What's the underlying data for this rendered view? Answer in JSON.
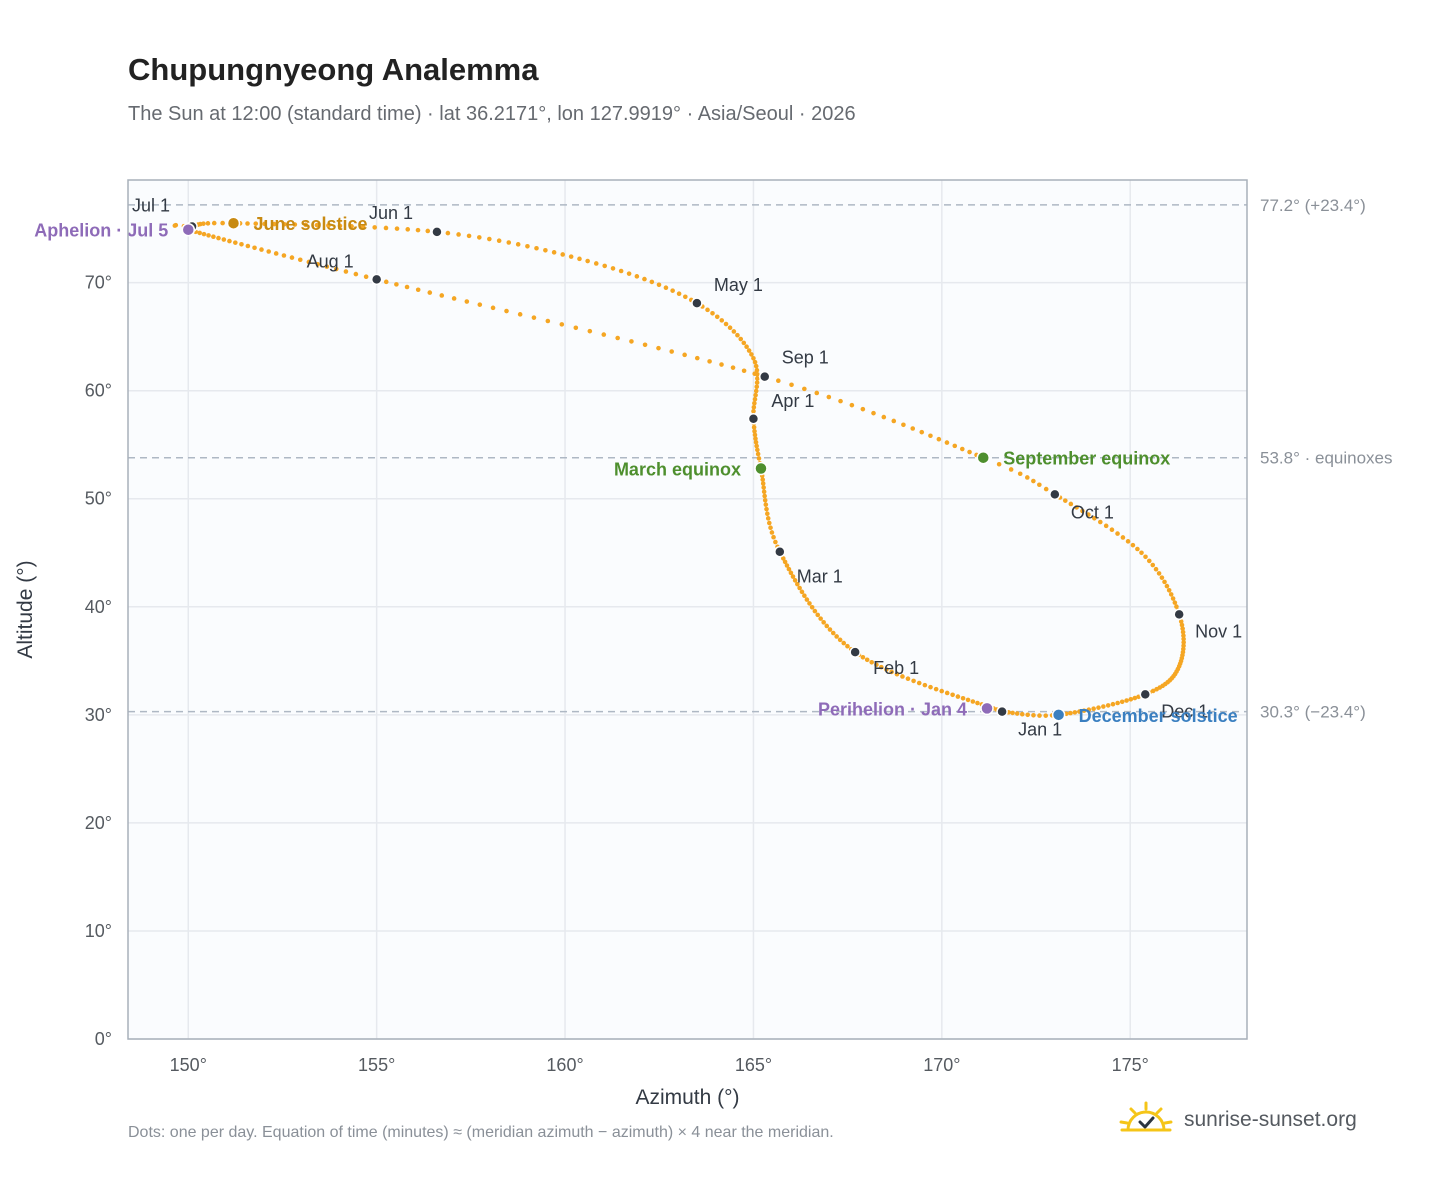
{
  "title": "Chupungnyeong Analemma",
  "subtitle": "The Sun at 12:00 (standard time) · lat 36.2171°, lon 127.9919° · Asia/Seoul · 2026",
  "footnote": "Dots: one per day. Equation of time (minutes) ≈ (meridian azimuth − azimuth) × 4 near the meridian.",
  "brand": {
    "name": "sunrise-sunset.org",
    "icon": "sun-check-icon"
  },
  "colors": {
    "path": "#f5a623",
    "month": "#333a44",
    "june": "#c88a12",
    "december": "#3a7fc0",
    "equinox": "#4e8f2e",
    "apsis": "#8e6bb8",
    "grid": "#e6e9ee",
    "ref": "#aeb8c4",
    "frame": "#a8b0ba",
    "plot_bg": "#fafcfe",
    "tick": "#555a60"
  },
  "chart_data": {
    "type": "scatter",
    "xlabel": "Azimuth (°)",
    "ylabel": "Altitude (°)",
    "xlim": [
      148.4,
      178.1
    ],
    "ylim": [
      0,
      79.5
    ],
    "x_ticks": [
      150,
      155,
      160,
      165,
      170,
      175
    ],
    "y_ticks": [
      0,
      10,
      20,
      30,
      40,
      50,
      60,
      70
    ],
    "x_tick_labels": [
      "150°",
      "155°",
      "160°",
      "165°",
      "170°",
      "175°"
    ],
    "y_tick_labels": [
      "0°",
      "10°",
      "20°",
      "30°",
      "40°",
      "50°",
      "60°",
      "70°"
    ],
    "grid": true,
    "reference_lines": [
      {
        "y": 77.2,
        "label": "77.2° (+23.4°)"
      },
      {
        "y": 53.8,
        "label": "53.8° · equinoxes"
      },
      {
        "y": 30.3,
        "label": "30.3° (−23.4°)"
      }
    ],
    "month_markers": [
      {
        "label": "Jan 1",
        "az": 171.6,
        "alt": 30.3
      },
      {
        "label": "Feb 1",
        "az": 167.7,
        "alt": 35.8
      },
      {
        "label": "Mar 1",
        "az": 165.7,
        "alt": 45.1
      },
      {
        "label": "Apr 1",
        "az": 165.0,
        "alt": 57.4
      },
      {
        "label": "May 1",
        "az": 163.5,
        "alt": 68.1
      },
      {
        "label": "Jun 1",
        "az": 156.6,
        "alt": 74.7
      },
      {
        "label": "Jul 1",
        "az": 150.1,
        "alt": 75.2
      },
      {
        "label": "Aug 1",
        "az": 155.0,
        "alt": 70.3
      },
      {
        "label": "Sep 1",
        "az": 165.3,
        "alt": 61.3
      },
      {
        "label": "Oct 1",
        "az": 173.0,
        "alt": 50.4
      },
      {
        "label": "Nov 1",
        "az": 176.3,
        "alt": 39.3
      },
      {
        "label": "Dec 1",
        "az": 175.4,
        "alt": 31.9
      }
    ],
    "events": [
      {
        "label": "June solstice",
        "az": 151.2,
        "alt": 75.5,
        "kind": "june"
      },
      {
        "label": "Aphelion · Jul 5",
        "az": 150.0,
        "alt": 74.9,
        "kind": "apsis"
      },
      {
        "label": "March equinox",
        "az": 165.2,
        "alt": 52.8,
        "kind": "equinox"
      },
      {
        "label": "September equinox",
        "az": 171.1,
        "alt": 53.8,
        "kind": "equinox"
      },
      {
        "label": "Perihelion · Jan 4",
        "az": 171.2,
        "alt": 30.6,
        "kind": "apsis"
      },
      {
        "label": "December solstice",
        "az": 173.1,
        "alt": 30.0,
        "kind": "december"
      }
    ],
    "path_keypoints": [
      {
        "day": 0,
        "az": 171.6,
        "alt": 30.3
      },
      {
        "day": 31,
        "az": 167.7,
        "alt": 35.8
      },
      {
        "day": 59,
        "az": 165.7,
        "alt": 45.1
      },
      {
        "day": 78,
        "az": 165.2,
        "alt": 52.8
      },
      {
        "day": 90,
        "az": 165.0,
        "alt": 57.4
      },
      {
        "day": 105,
        "az": 165.0,
        "alt": 63.0
      },
      {
        "day": 120,
        "az": 163.5,
        "alt": 68.1
      },
      {
        "day": 135,
        "az": 160.6,
        "alt": 72.0
      },
      {
        "day": 151,
        "az": 156.6,
        "alt": 74.7
      },
      {
        "day": 171,
        "az": 151.2,
        "alt": 75.5
      },
      {
        "day": 181,
        "az": 150.1,
        "alt": 75.2
      },
      {
        "day": 185,
        "az": 150.0,
        "alt": 74.9
      },
      {
        "day": 212,
        "az": 155.0,
        "alt": 70.3
      },
      {
        "day": 243,
        "az": 165.3,
        "alt": 61.3
      },
      {
        "day": 265,
        "az": 171.1,
        "alt": 53.8
      },
      {
        "day": 273,
        "az": 173.0,
        "alt": 50.4
      },
      {
        "day": 289,
        "az": 175.3,
        "alt": 45.0
      },
      {
        "day": 304,
        "az": 176.3,
        "alt": 39.3
      },
      {
        "day": 320,
        "az": 176.3,
        "alt": 34.5
      },
      {
        "day": 334,
        "az": 175.4,
        "alt": 31.9
      },
      {
        "day": 354,
        "az": 173.1,
        "alt": 30.0
      },
      {
        "day": 365,
        "az": 171.6,
        "alt": 30.3
      }
    ]
  }
}
